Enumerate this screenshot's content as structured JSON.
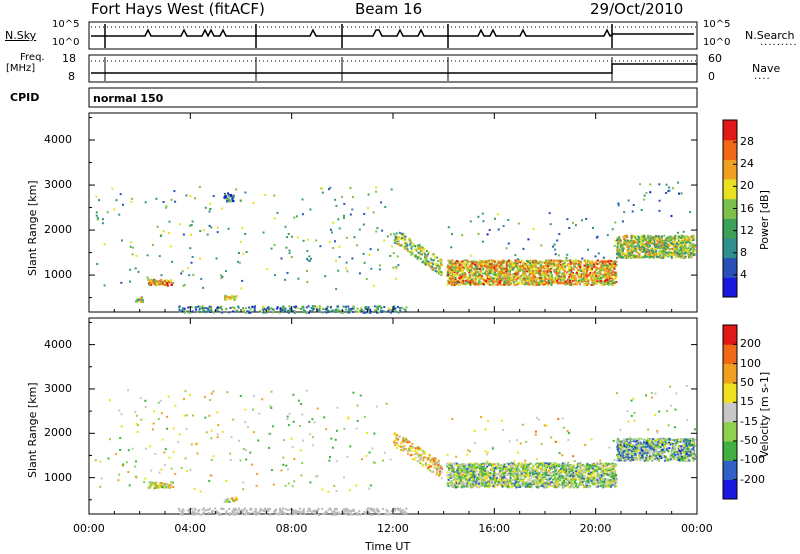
{
  "header": {
    "title": "Fort Hays West (fitACF)",
    "beam": "Beam 16",
    "date": "29/Oct/2010"
  },
  "top_panels": {
    "nsky_label": "N.Sky",
    "nsky_ticks": [
      "10^5",
      "10^0"
    ],
    "nsearch_label": "N.Search",
    "nsearch_ticks": [
      "10^5",
      "10^0"
    ],
    "freq_label": "Freq.",
    "freq_unit": "[MHz]",
    "freq_ticks": [
      "18",
      "8"
    ],
    "nave_label": "Nave",
    "nave_ticks": [
      "60",
      "0"
    ],
    "cpid_label": "CPID",
    "cpid_value": "normal 150"
  },
  "chart_data": [
    {
      "type": "heatmap",
      "title": "",
      "xlabel": "",
      "ylabel": "Slant Range [km]",
      "x_ticks": [
        "00:00",
        "04:00",
        "08:00",
        "12:00",
        "16:00",
        "20:00",
        "00:00"
      ],
      "x_range_hours": [
        0,
        24
      ],
      "y_ticks": [
        1000,
        2000,
        3000,
        4000
      ],
      "ylim": [
        180,
        4600
      ],
      "colorbar": {
        "label": "Power [dB]",
        "ticks": [
          "28",
          "24",
          "20",
          "16",
          "12",
          "8",
          "4"
        ],
        "range": [
          0,
          30
        ],
        "colors": [
          "#1818e0",
          "#2850b8",
          "#2f8f8f",
          "#3ca05a",
          "#7ac04a",
          "#e8e020",
          "#f0a020",
          "#f06818",
          "#e01818"
        ]
      },
      "echo_regions": [
        {
          "t0": 0.2,
          "t1": 12.2,
          "r0": 700,
          "r1": 3000,
          "kind": "scattered",
          "power": 12
        },
        {
          "t0": 2.3,
          "t1": 3.3,
          "r0": 780,
          "r1": 920,
          "kind": "band",
          "power": 22
        },
        {
          "t0": 1.8,
          "t1": 2.1,
          "r0": 420,
          "r1": 530,
          "kind": "band",
          "power": 14
        },
        {
          "t0": 5.3,
          "t1": 5.8,
          "r0": 470,
          "r1": 570,
          "kind": "band",
          "power": 18
        },
        {
          "t0": 5.3,
          "t1": 5.7,
          "r0": 2650,
          "r1": 2850,
          "kind": "band",
          "power": 8
        },
        {
          "t0": 3.5,
          "t1": 12.5,
          "r0": 180,
          "r1": 330,
          "kind": "groundscatter",
          "power": 10
        },
        {
          "t0": 12.0,
          "t1": 13.9,
          "r0": 1050,
          "r1": 1900,
          "kind": "slope",
          "power": 14
        },
        {
          "t0": 14.1,
          "t1": 20.8,
          "r0": 800,
          "r1": 1350,
          "kind": "band",
          "power": 20
        },
        {
          "t0": 14.1,
          "t1": 20.8,
          "r0": 1350,
          "r1": 2400,
          "kind": "scattered",
          "power": 10
        },
        {
          "t0": 20.8,
          "t1": 23.9,
          "r0": 1400,
          "r1": 1900,
          "kind": "band",
          "power": 16
        },
        {
          "t0": 20.8,
          "t1": 23.9,
          "r0": 1900,
          "r1": 3100,
          "kind": "scattered",
          "power": 8
        }
      ]
    },
    {
      "type": "heatmap",
      "title": "",
      "xlabel": "Time UT",
      "ylabel": "Slant Range [km]",
      "x_ticks": [
        "00:00",
        "04:00",
        "08:00",
        "12:00",
        "16:00",
        "20:00",
        "00:00"
      ],
      "x_range_hours": [
        0,
        24
      ],
      "y_ticks": [
        1000,
        2000,
        3000,
        4000
      ],
      "ylim": [
        180,
        4600
      ],
      "colorbar": {
        "label": "Velocity [m s-1]",
        "ticks": [
          "200",
          "100",
          "50",
          "15",
          "-15",
          "-50",
          "-100",
          "-200"
        ],
        "range": [
          -250,
          250
        ],
        "colors": [
          "#1818e0",
          "#3060c8",
          "#40b040",
          "#90d050",
          "#c8c8c8",
          "#f0e020",
          "#f0a020",
          "#f06818",
          "#e01818"
        ]
      },
      "echo_regions": [
        {
          "t0": 0.2,
          "t1": 12.2,
          "r0": 700,
          "r1": 3000,
          "kind": "scattered",
          "velocity": 0
        },
        {
          "t0": 2.3,
          "t1": 3.3,
          "r0": 780,
          "r1": 920,
          "kind": "band",
          "velocity": 0
        },
        {
          "t0": 5.3,
          "t1": 5.8,
          "r0": 470,
          "r1": 570,
          "kind": "band",
          "velocity": 0
        },
        {
          "t0": 3.5,
          "t1": 12.5,
          "r0": 180,
          "r1": 330,
          "kind": "groundscatter",
          "velocity": 0
        },
        {
          "t0": 12.0,
          "t1": 13.9,
          "r0": 1050,
          "r1": 1900,
          "kind": "slope",
          "velocity": 60
        },
        {
          "t0": 14.1,
          "t1": 20.8,
          "r0": 800,
          "r1": 1350,
          "kind": "band",
          "velocity": -40
        },
        {
          "t0": 14.1,
          "t1": 20.8,
          "r0": 1350,
          "r1": 2400,
          "kind": "scattered",
          "velocity": 20
        },
        {
          "t0": 20.8,
          "t1": 23.9,
          "r0": 1400,
          "r1": 1900,
          "kind": "band",
          "velocity": -80
        },
        {
          "t0": 20.8,
          "t1": 23.9,
          "r0": 1900,
          "r1": 3100,
          "kind": "scattered",
          "velocity": 0
        }
      ]
    }
  ]
}
